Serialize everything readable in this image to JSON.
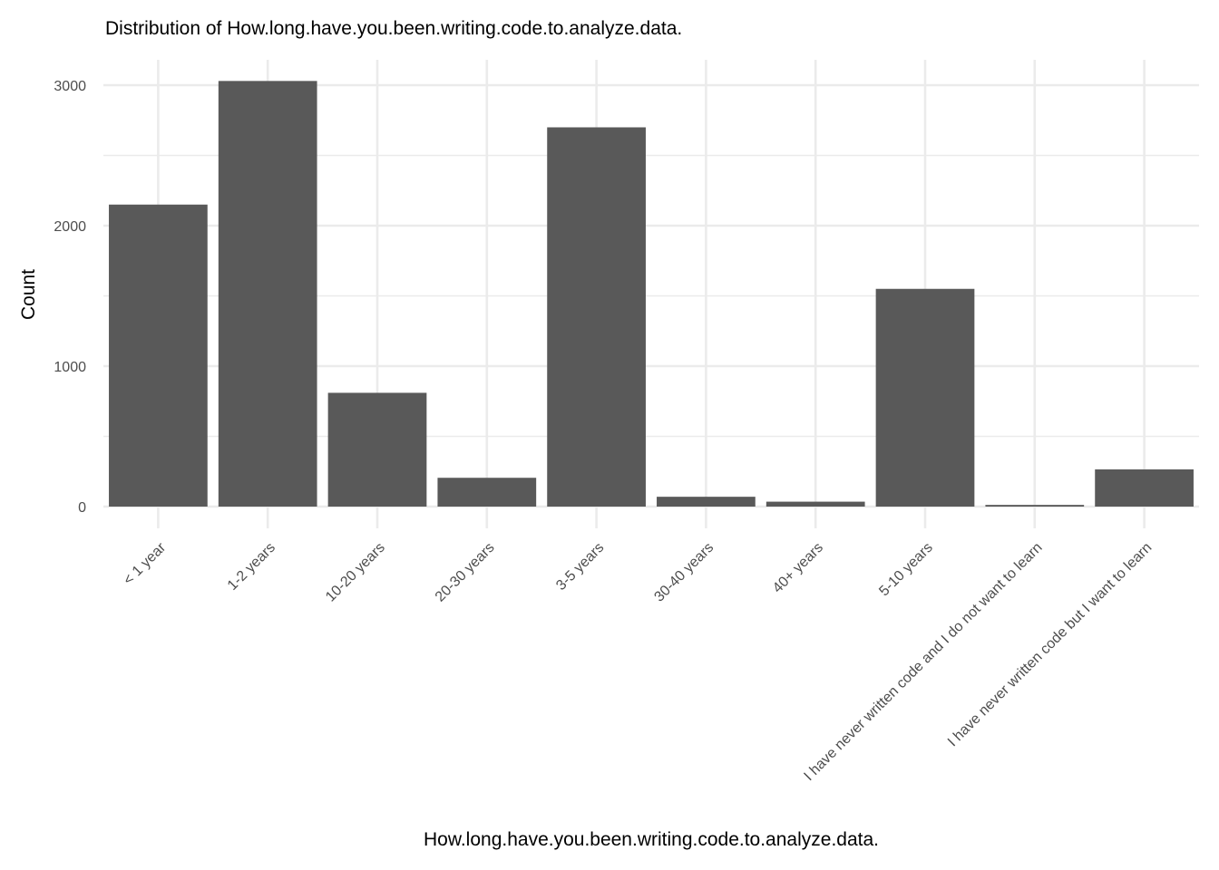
{
  "chart_data": {
    "type": "bar",
    "title": "Distribution of How.long.have.you.been.writing.code.to.analyze.data.",
    "xlabel": "How.long.have.you.been.writing.code.to.analyze.data.",
    "ylabel": "Count",
    "categories": [
      "< 1 year",
      "1-2 years",
      "10-20 years",
      "20-30 years",
      "3-5 years",
      "30-40 years",
      "40+ years",
      "5-10 years",
      "I have never written code and I do not want to learn",
      "I have never written code but I want to learn"
    ],
    "values": [
      2150,
      3030,
      810,
      205,
      2700,
      70,
      35,
      1550,
      12,
      265
    ],
    "ylim": [
      0,
      3030
    ],
    "yticks": [
      0,
      1000,
      2000,
      3000
    ],
    "ytick_labels": [
      "0",
      "1000",
      "2000",
      "3000"
    ],
    "grid": true,
    "legend": "none",
    "colors": {
      "bar": "#595959",
      "grid": "#ebebeb",
      "tick_text": "#4d4d4d"
    }
  }
}
